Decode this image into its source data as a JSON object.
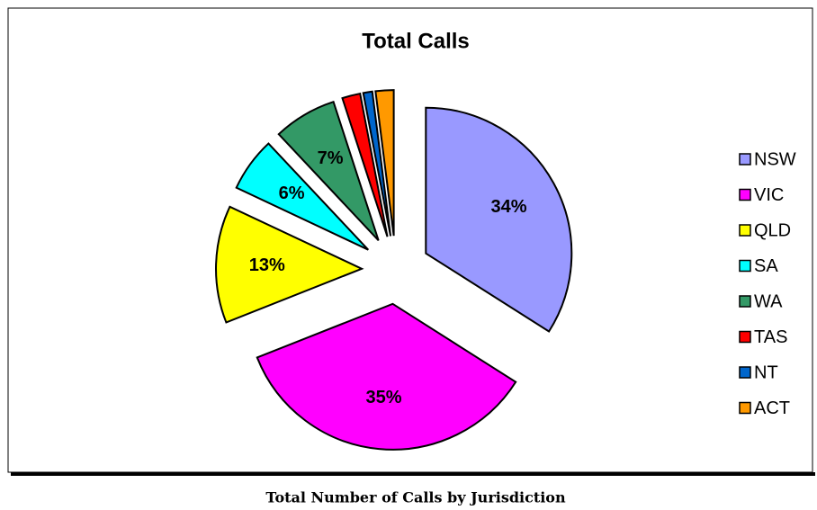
{
  "chart_data": {
    "type": "pie",
    "title": "Total Calls",
    "caption": "Total Number of Calls by Jurisdiction",
    "categories": [
      "NSW",
      "VIC",
      "QLD",
      "SA",
      "WA",
      "TAS",
      "NT",
      "ACT"
    ],
    "values": [
      34,
      35,
      13,
      6,
      7,
      2,
      1,
      2
    ],
    "value_labels": [
      "34%",
      "35%",
      "13%",
      "6%",
      "7%",
      null,
      null,
      null
    ],
    "colors": [
      "#9999ff",
      "#ff00ff",
      "#ffff00",
      "#00ffff",
      "#339966",
      "#ff0000",
      "#0066cc",
      "#ff9900"
    ],
    "legend": "right"
  }
}
